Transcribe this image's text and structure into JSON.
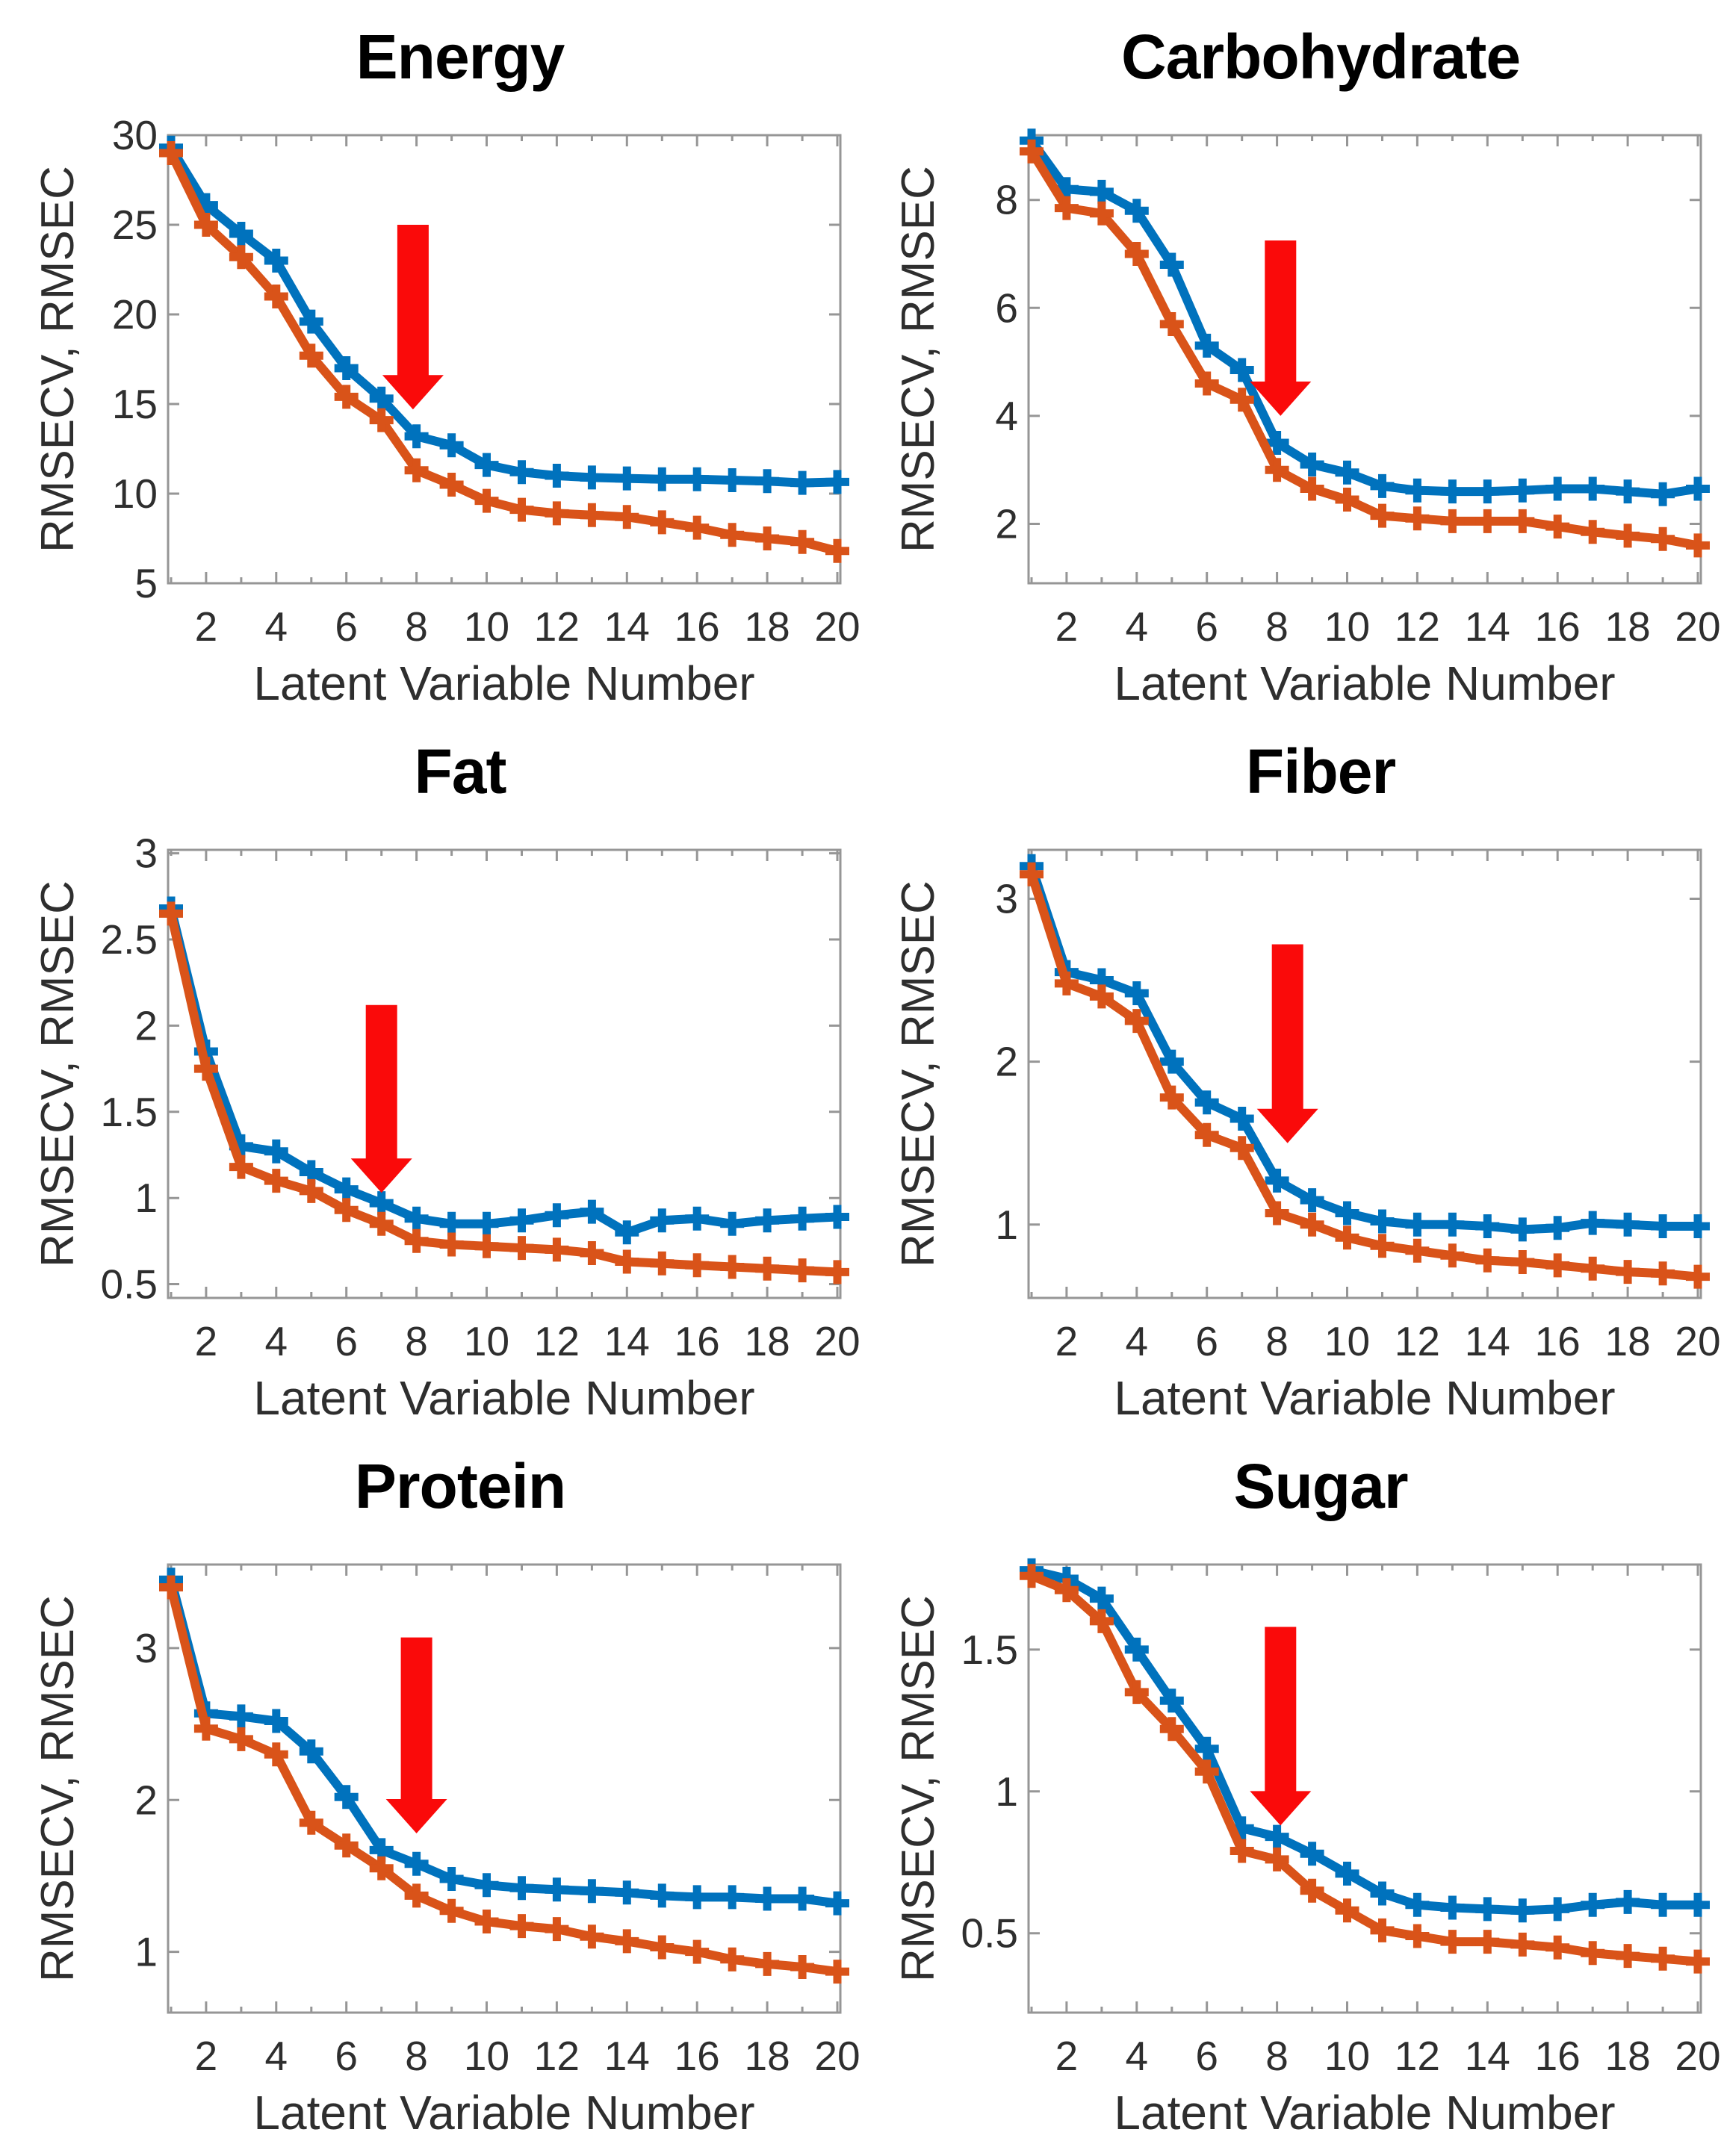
{
  "style": {
    "rmsecv_color": "#0072BD",
    "rmsec_color": "#D95319",
    "arrow_color": "#FA0A0A",
    "axis_color": "#969696",
    "tick_label_color": "#2e2e2e",
    "title_color": "#000000",
    "background": "#ffffff"
  },
  "chart_data": [
    {
      "type": "line",
      "title": "Energy",
      "xlabel": "Latent Variable Number",
      "ylabel": "RMSECV, RMSEC",
      "x": [
        1,
        2,
        3,
        4,
        5,
        6,
        7,
        8,
        9,
        10,
        11,
        12,
        13,
        14,
        15,
        16,
        17,
        18,
        19,
        20
      ],
      "xlim": [
        1,
        20
      ],
      "ylim": [
        5,
        30
      ],
      "xticks": [
        2,
        4,
        6,
        8,
        10,
        12,
        14,
        16,
        18,
        20
      ],
      "yticks": [
        5,
        10,
        15,
        20,
        25,
        30
      ],
      "series": [
        {
          "name": "RMSECV",
          "color": "#0072BD",
          "values": [
            29.3,
            26.1,
            24.5,
            23.0,
            19.6,
            17.0,
            15.3,
            13.2,
            12.7,
            11.6,
            11.2,
            11.0,
            10.9,
            10.85,
            10.8,
            10.8,
            10.75,
            10.7,
            10.6,
            10.65
          ]
        },
        {
          "name": "RMSEC",
          "color": "#D95319",
          "values": [
            29.0,
            25.0,
            23.2,
            21.0,
            17.7,
            15.4,
            14.1,
            11.3,
            10.5,
            9.6,
            9.1,
            8.9,
            8.8,
            8.7,
            8.4,
            8.1,
            7.7,
            7.5,
            7.3,
            6.8
          ]
        }
      ],
      "annotation_arrow": {
        "x": 7.9,
        "y_from": 25.0,
        "y_to": 14.7
      }
    },
    {
      "type": "line",
      "title": "Carbohydrate",
      "xlabel": "Latent Variable Number",
      "ylabel": "RMSECV, RMSEC",
      "x": [
        1,
        2,
        3,
        4,
        5,
        6,
        7,
        8,
        9,
        10,
        11,
        12,
        13,
        14,
        15,
        16,
        17,
        18,
        19,
        20
      ],
      "xlim": [
        1,
        20
      ],
      "ylim": [
        0.9,
        9.2
      ],
      "xticks": [
        2,
        4,
        6,
        8,
        10,
        12,
        14,
        16,
        18,
        20
      ],
      "yticks": [
        2,
        4,
        6,
        8
      ],
      "series": [
        {
          "name": "RMSECV",
          "color": "#0072BD",
          "values": [
            9.1,
            8.2,
            8.15,
            7.8,
            6.8,
            5.3,
            4.85,
            3.5,
            3.1,
            2.95,
            2.7,
            2.62,
            2.6,
            2.6,
            2.62,
            2.65,
            2.65,
            2.6,
            2.55,
            2.65
          ]
        },
        {
          "name": "RMSEC",
          "color": "#D95319",
          "values": [
            8.9,
            7.85,
            7.75,
            7.0,
            5.7,
            4.6,
            4.3,
            3.0,
            2.65,
            2.45,
            2.15,
            2.1,
            2.05,
            2.05,
            2.05,
            1.95,
            1.85,
            1.78,
            1.72,
            1.6
          ]
        }
      ],
      "annotation_arrow": {
        "x": 8.1,
        "y_from": 7.25,
        "y_to": 4.0
      }
    },
    {
      "type": "line",
      "title": "Fat",
      "xlabel": "Latent Variable Number",
      "ylabel": "RMSECV, RMSEC",
      "x": [
        1,
        2,
        3,
        4,
        5,
        6,
        7,
        8,
        9,
        10,
        11,
        12,
        13,
        14,
        15,
        16,
        17,
        18,
        19,
        20
      ],
      "xlim": [
        1,
        20
      ],
      "ylim": [
        0.42,
        3.02
      ],
      "xticks": [
        2,
        4,
        6,
        8,
        10,
        12,
        14,
        16,
        18,
        20
      ],
      "yticks": [
        0.5,
        1,
        1.5,
        2,
        2.5,
        3
      ],
      "series": [
        {
          "name": "RMSECV",
          "color": "#0072BD",
          "values": [
            2.68,
            1.85,
            1.3,
            1.27,
            1.15,
            1.05,
            0.97,
            0.88,
            0.85,
            0.85,
            0.87,
            0.9,
            0.92,
            0.8,
            0.87,
            0.88,
            0.85,
            0.87,
            0.88,
            0.89
          ]
        },
        {
          "name": "RMSEC",
          "color": "#D95319",
          "values": [
            2.65,
            1.75,
            1.18,
            1.1,
            1.04,
            0.93,
            0.85,
            0.75,
            0.73,
            0.72,
            0.71,
            0.7,
            0.68,
            0.63,
            0.62,
            0.61,
            0.6,
            0.59,
            0.58,
            0.57
          ]
        }
      ],
      "annotation_arrow": {
        "x": 7.0,
        "y_from": 2.12,
        "y_to": 1.03
      }
    },
    {
      "type": "line",
      "title": "Fiber",
      "xlabel": "Latent Variable Number",
      "ylabel": "RMSECV, RMSEC",
      "x": [
        1,
        2,
        3,
        4,
        5,
        6,
        7,
        8,
        9,
        10,
        11,
        12,
        13,
        14,
        15,
        16,
        17,
        18,
        19,
        20
      ],
      "xlim": [
        1,
        20
      ],
      "ylim": [
        0.55,
        3.3
      ],
      "xticks": [
        2,
        4,
        6,
        8,
        10,
        12,
        14,
        16,
        18,
        20
      ],
      "yticks": [
        1,
        2,
        3
      ],
      "series": [
        {
          "name": "RMSECV",
          "color": "#0072BD",
          "values": [
            3.2,
            2.55,
            2.5,
            2.42,
            2.0,
            1.75,
            1.65,
            1.27,
            1.15,
            1.07,
            1.02,
            1.0,
            1.0,
            0.99,
            0.97,
            0.98,
            1.01,
            1.0,
            0.99,
            0.99
          ]
        },
        {
          "name": "RMSEC",
          "color": "#D95319",
          "values": [
            3.15,
            2.48,
            2.4,
            2.25,
            1.78,
            1.55,
            1.47,
            1.07,
            1.0,
            0.92,
            0.87,
            0.84,
            0.81,
            0.78,
            0.77,
            0.75,
            0.73,
            0.71,
            0.7,
            0.68
          ]
        }
      ],
      "annotation_arrow": {
        "x": 8.3,
        "y_from": 2.72,
        "y_to": 1.5
      }
    },
    {
      "type": "line",
      "title": "Protein",
      "xlabel": "Latent Variable Number",
      "ylabel": "RMSECV, RMSEC",
      "x": [
        1,
        2,
        3,
        4,
        5,
        6,
        7,
        8,
        9,
        10,
        11,
        12,
        13,
        14,
        15,
        16,
        17,
        18,
        19,
        20
      ],
      "xlim": [
        1,
        20
      ],
      "ylim": [
        0.6,
        3.55
      ],
      "xticks": [
        2,
        4,
        6,
        8,
        10,
        12,
        14,
        16,
        18,
        20
      ],
      "yticks": [
        1,
        2,
        3
      ],
      "series": [
        {
          "name": "RMSECV",
          "color": "#0072BD",
          "values": [
            3.45,
            2.57,
            2.55,
            2.52,
            2.32,
            2.02,
            1.67,
            1.58,
            1.48,
            1.44,
            1.42,
            1.41,
            1.4,
            1.39,
            1.37,
            1.36,
            1.36,
            1.35,
            1.35,
            1.32
          ]
        },
        {
          "name": "RMSEC",
          "color": "#D95319",
          "values": [
            3.4,
            2.47,
            2.4,
            2.3,
            1.85,
            1.7,
            1.55,
            1.37,
            1.27,
            1.2,
            1.17,
            1.15,
            1.1,
            1.07,
            1.03,
            1.0,
            0.95,
            0.92,
            0.9,
            0.87
          ]
        }
      ],
      "annotation_arrow": {
        "x": 8.0,
        "y_from": 3.07,
        "y_to": 1.78
      }
    },
    {
      "type": "line",
      "title": "Sugar",
      "xlabel": "Latent Variable Number",
      "ylabel": "RMSECV, RMSEC",
      "x": [
        1,
        2,
        3,
        4,
        5,
        6,
        7,
        8,
        9,
        10,
        11,
        12,
        13,
        14,
        15,
        16,
        17,
        18,
        19,
        20
      ],
      "xlim": [
        1,
        20
      ],
      "ylim": [
        0.22,
        1.8
      ],
      "xticks": [
        2,
        4,
        6,
        8,
        10,
        12,
        14,
        16,
        18,
        20
      ],
      "yticks": [
        0.5,
        1,
        1.5
      ],
      "series": [
        {
          "name": "RMSECV",
          "color": "#0072BD",
          "values": [
            1.78,
            1.75,
            1.68,
            1.5,
            1.32,
            1.15,
            0.87,
            0.84,
            0.78,
            0.71,
            0.64,
            0.6,
            0.59,
            0.585,
            0.58,
            0.585,
            0.6,
            0.61,
            0.6,
            0.6
          ]
        },
        {
          "name": "RMSEC",
          "color": "#D95319",
          "values": [
            1.76,
            1.71,
            1.6,
            1.35,
            1.22,
            1.07,
            0.79,
            0.76,
            0.65,
            0.58,
            0.51,
            0.49,
            0.47,
            0.47,
            0.46,
            0.45,
            0.43,
            0.42,
            0.41,
            0.4
          ]
        }
      ],
      "annotation_arrow": {
        "x": 8.1,
        "y_from": 1.58,
        "y_to": 0.88
      }
    }
  ]
}
